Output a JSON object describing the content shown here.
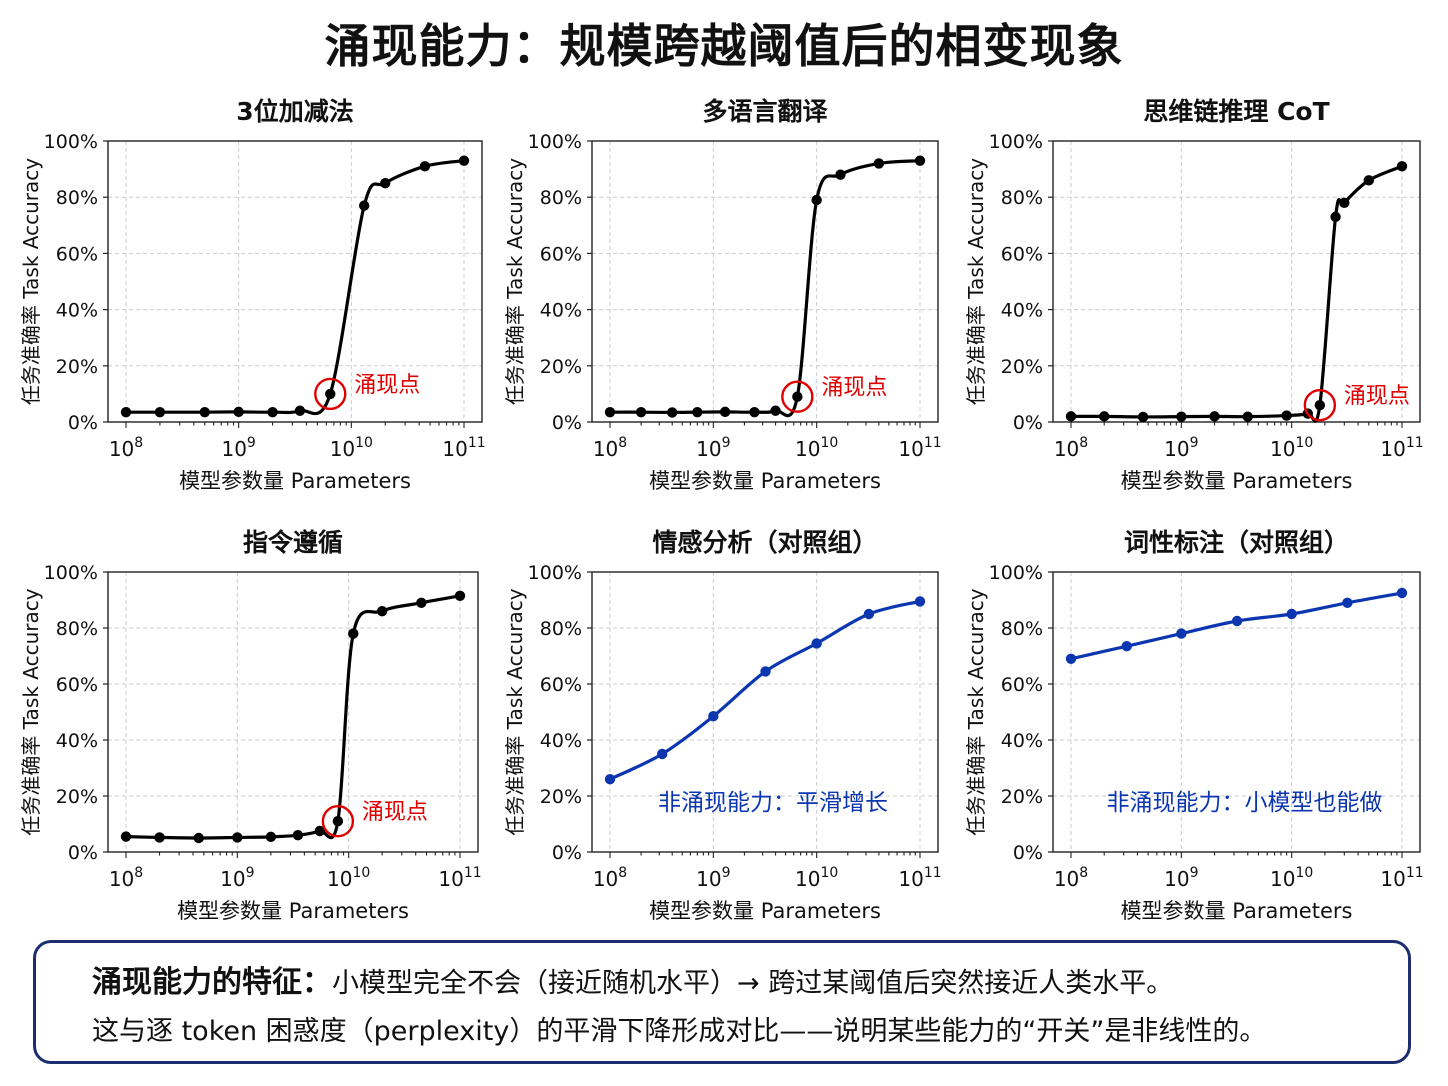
{
  "title": "涌现能力：规模跨越阈值后的相变现象",
  "common": {
    "ylabel": "任务准确率 Task Accuracy",
    "xlabel": "模型参数量 Parameters",
    "y_ticks": [
      "0%",
      "20%",
      "40%",
      "60%",
      "80%",
      "100%"
    ],
    "x_tick_base": "10",
    "x_tick_exponents": [
      "8",
      "9",
      "10",
      "11"
    ]
  },
  "colors": {
    "emergent_line": "#000000",
    "control_line": "#0b36b0",
    "marker_circle": "#e00000",
    "annotation_red": "#e00000",
    "annotation_blue": "#0b36b0",
    "grid": "#cccccc"
  },
  "chart_data": [
    {
      "type": "line",
      "title": "3位加减法",
      "xscale": "log",
      "xlim": [
        100000000.0,
        100000000000.0
      ],
      "ylim": [
        0,
        100
      ],
      "grid": true,
      "x": [
        100000000.0,
        200000000.0,
        500000000.0,
        1000000000.0,
        2000000000.0,
        3500000000.0,
        6500000000.0,
        13000000000.0,
        20000000000.0,
        45000000000.0,
        100000000000.0
      ],
      "y": [
        3.5,
        3.5,
        3.5,
        3.6,
        3.5,
        4,
        10,
        77,
        85,
        91,
        93
      ],
      "annotation": {
        "text": "涌现点",
        "x": 6500000000.0,
        "y": 10
      },
      "style": "emergent"
    },
    {
      "type": "line",
      "title": "多语言翻译",
      "xscale": "log",
      "xlim": [
        100000000.0,
        100000000000.0
      ],
      "ylim": [
        0,
        100
      ],
      "grid": true,
      "x": [
        100000000.0,
        200000000.0,
        400000000.0,
        700000000.0,
        1300000000.0,
        2500000000.0,
        4000000000.0,
        6500000000.0,
        10000000000.0,
        17000000000.0,
        40000000000.0,
        100000000000.0
      ],
      "y": [
        3.5,
        3.5,
        3.4,
        3.5,
        3.6,
        3.5,
        4,
        9,
        79,
        88,
        92,
        93
      ],
      "annotation": {
        "text": "涌现点",
        "x": 6500000000.0,
        "y": 9
      },
      "style": "emergent"
    },
    {
      "type": "line",
      "title": "思维链推理 CoT",
      "xscale": "log",
      "xlim": [
        100000000.0,
        100000000000.0
      ],
      "ylim": [
        0,
        100
      ],
      "grid": true,
      "x": [
        100000000.0,
        200000000.0,
        450000000.0,
        1000000000.0,
        2000000000.0,
        4000000000.0,
        9000000000.0,
        14000000000.0,
        18000000000.0,
        25000000000.0,
        30000000000.0,
        50000000000.0,
        100000000000.0
      ],
      "y": [
        2,
        2,
        1.8,
        1.9,
        2,
        1.9,
        2.3,
        3,
        6,
        73,
        78,
        86,
        91
      ],
      "annotation": {
        "text": "涌现点",
        "x": 18000000000.0,
        "y": 6
      },
      "style": "emergent"
    },
    {
      "type": "line",
      "title": "指令遵循",
      "xscale": "log",
      "xlim": [
        100000000.0,
        100000000000.0
      ],
      "ylim": [
        0,
        100
      ],
      "grid": true,
      "x": [
        100000000.0,
        200000000.0,
        450000000.0,
        1000000000.0,
        2000000000.0,
        3500000000.0,
        5500000000.0,
        8000000000.0,
        11000000000.0,
        20000000000.0,
        45000000000.0,
        100000000000.0
      ],
      "y": [
        5.5,
        5.2,
        5,
        5.2,
        5.4,
        6,
        7.5,
        11,
        78,
        86,
        89,
        91.5
      ],
      "annotation": {
        "text": "涌现点",
        "x": 8000000000.0,
        "y": 11
      },
      "style": "emergent"
    },
    {
      "type": "line",
      "title": "情感分析（对照组）",
      "xscale": "log",
      "xlim": [
        100000000.0,
        100000000000.0
      ],
      "ylim": [
        0,
        100
      ],
      "grid": true,
      "x": [
        100000000.0,
        320000000.0,
        1000000000.0,
        3200000000.0,
        10000000000.0,
        32000000000.0,
        100000000000.0
      ],
      "y": [
        26,
        35,
        48.5,
        64.5,
        74.5,
        85,
        89.5
      ],
      "annotation": {
        "text": "非涌现能力：平滑增长"
      },
      "style": "control"
    },
    {
      "type": "line",
      "title": "词性标注（对照组）",
      "xscale": "log",
      "xlim": [
        100000000.0,
        100000000000.0
      ],
      "ylim": [
        0,
        100
      ],
      "grid": true,
      "x": [
        100000000.0,
        320000000.0,
        1000000000.0,
        3200000000.0,
        10000000000.0,
        32000000000.0,
        100000000000.0
      ],
      "y": [
        69,
        73.5,
        78,
        82.5,
        85,
        89,
        92.5
      ],
      "annotation": {
        "text": "非涌现能力：小模型也能做"
      },
      "style": "control"
    }
  ],
  "note": {
    "lead": "涌现能力的特征：",
    "line1": "小模型完全不会（接近随机水平）→ 跨过某阈值后突然接近人类水平。",
    "line2": "这与逐 token 困惑度（perplexity）的平滑下降形成对比——说明某些能力的“开关”是非线性的。"
  }
}
